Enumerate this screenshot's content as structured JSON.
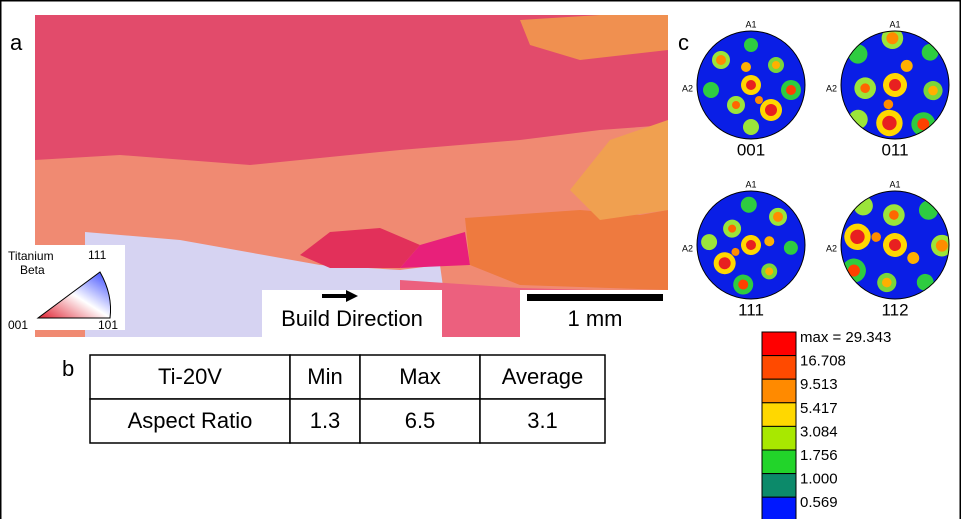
{
  "panels": {
    "a": "a",
    "b": "b",
    "c": "c"
  },
  "map": {
    "legend_title": [
      "Titanium",
      "Beta"
    ],
    "corners": [
      "111",
      "001",
      "101"
    ],
    "build_direction": "Build Direction",
    "scale_bar": "1 mm"
  },
  "table": {
    "header": [
      "Ti-20V",
      "Min",
      "Max",
      "Average"
    ],
    "rows": [
      [
        "Aspect Ratio",
        "1.3",
        "6.5",
        "3.1"
      ]
    ]
  },
  "pole_figures": {
    "axes": [
      "A1",
      "A2"
    ],
    "labels": [
      "001",
      "011",
      "111",
      "112"
    ]
  },
  "colorbar": {
    "labels": [
      "max = 29.343",
      "16.708",
      "9.513",
      "5.417",
      "3.084",
      "1.756",
      "1.000",
      "0.569"
    ]
  }
}
